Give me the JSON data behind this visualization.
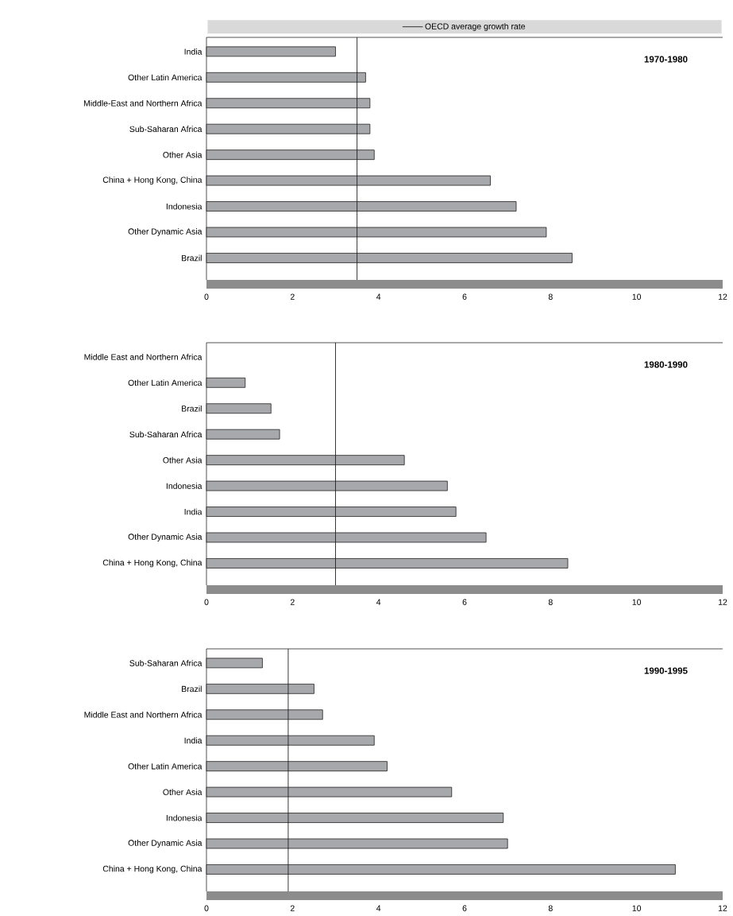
{
  "chart_data": [
    {
      "type": "bar",
      "orientation": "horizontal",
      "title": "1970-1980",
      "categories": [
        "India",
        "Other Latin America",
        "Middle-East and Northern Africa",
        "Sub-Saharan Africa",
        "Other Asia",
        "China + Hong Kong, China",
        "Indonesia",
        "Other Dynamic Asia",
        "Brazil"
      ],
      "values": [
        3.0,
        3.7,
        3.8,
        3.8,
        3.9,
        6.6,
        7.2,
        7.9,
        8.5
      ],
      "color": "#a7a8ab",
      "xlim": [
        0,
        12
      ],
      "xticks": [
        0,
        2,
        4,
        6,
        8,
        10,
        12
      ],
      "ref_lines": [
        {
          "axis": "x",
          "value": 3.5,
          "label": "OECD average growth rate",
          "color": "#231f20"
        }
      ],
      "legend": "top"
    },
    {
      "type": "bar",
      "orientation": "horizontal",
      "title": "1980-1990",
      "categories": [
        "Middle East and Northern Africa",
        "Other Latin America",
        "Brazil",
        "Sub-Saharan Africa",
        "Other Asia",
        "Indonesia",
        "India",
        "Other Dynamic Asia",
        "China + Hong Kong, China"
      ],
      "values": [
        null,
        0.9,
        1.5,
        1.7,
        4.6,
        5.6,
        5.8,
        6.5,
        8.4
      ],
      "color": "#a7a8ab",
      "xlim": [
        0,
        12
      ],
      "xticks": [
        0,
        2,
        4,
        6,
        8,
        10,
        12
      ],
      "ref_lines": [
        {
          "axis": "x",
          "value": 3.0,
          "color": "#231f20"
        }
      ]
    },
    {
      "type": "bar",
      "orientation": "horizontal",
      "title": "1990-1995",
      "categories": [
        "Sub-Saharan Africa",
        "Brazil",
        "Middle East and Northern Africa",
        "India",
        "Other Latin America",
        "Other Asia",
        "Indonesia",
        "Other Dynamic Asia",
        "China + Hong Kong, China"
      ],
      "values": [
        1.3,
        2.5,
        2.7,
        3.9,
        4.2,
        5.7,
        6.9,
        7.0,
        10.9
      ],
      "color": "#a7a8ab",
      "xlim": [
        0,
        12
      ],
      "xticks": [
        0,
        2,
        4,
        6,
        8,
        10,
        12
      ],
      "ref_lines": [
        {
          "axis": "x",
          "value": 1.9,
          "color": "#231f20"
        }
      ]
    }
  ]
}
